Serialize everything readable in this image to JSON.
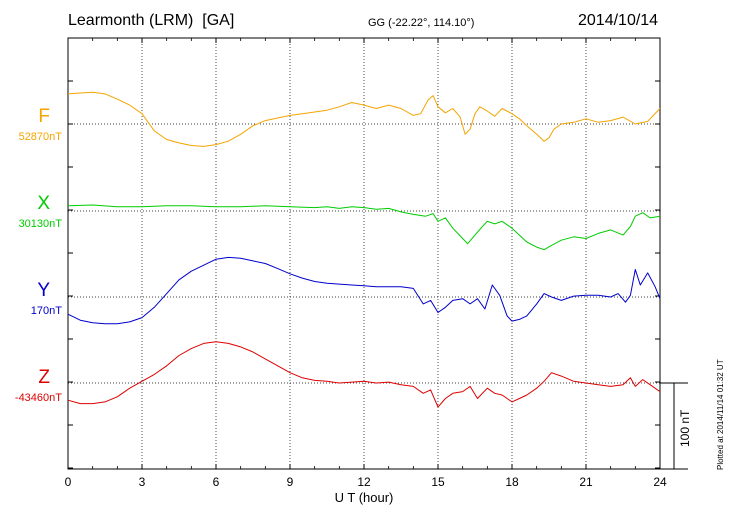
{
  "header": {
    "station": "Learmonth (LRM)  [GA]",
    "coords": "GG (-22.22°, 114.10°)",
    "date": "2014/10/14"
  },
  "footer": {
    "plotted": "Plotted at 2014/11/14 01:32 UT",
    "scale_label": "100 nT"
  },
  "chart_data": {
    "type": "line",
    "xlabel": "U T (hour)",
    "ylabel": "",
    "xlim": [
      0,
      24
    ],
    "x_ticks": [
      0,
      3,
      6,
      9,
      12,
      15,
      18,
      21,
      24
    ],
    "scale_bar_nT": 100,
    "grid": "dotted",
    "series": [
      {
        "name": "F",
        "baseline_label": "52870nT",
        "baseline_nT": 52870,
        "color": "#f5a400",
        "x": [
          0,
          0.5,
          1,
          1.5,
          2,
          2.5,
          3,
          3.5,
          4,
          4.5,
          5,
          5.5,
          6,
          6.5,
          7,
          7.5,
          8,
          8.5,
          9,
          9.5,
          10,
          10.5,
          11,
          11.5,
          12,
          12.5,
          13,
          13.5,
          14,
          14.3,
          14.6,
          14.8,
          15,
          15.3,
          15.6,
          15.9,
          16.1,
          16.3,
          16.5,
          16.7,
          17,
          17.3,
          17.6,
          18,
          18.3,
          18.6,
          19,
          19.3,
          19.5,
          19.7,
          20,
          20.5,
          21,
          21.5,
          22,
          22.5,
          23,
          23.5,
          24
        ],
        "y": [
          35,
          36,
          37,
          35,
          29,
          22,
          12,
          -8,
          -18,
          -22,
          -25,
          -26,
          -24,
          -20,
          -12,
          -2,
          4,
          7,
          10,
          12,
          14,
          16,
          20,
          25,
          22,
          18,
          22,
          18,
          10,
          12,
          28,
          33,
          20,
          13,
          18,
          8,
          -12,
          -6,
          12,
          20,
          15,
          9,
          18,
          12,
          6,
          -2,
          -12,
          -20,
          -16,
          -6,
          0,
          2,
          6,
          2,
          4,
          8,
          0,
          3,
          18
        ]
      },
      {
        "name": "X",
        "baseline_label": "30130nT",
        "baseline_nT": 30130,
        "color": "#00cc00",
        "x": [
          0,
          1,
          2,
          3,
          4,
          5,
          6,
          7,
          8,
          9,
          10,
          10.5,
          11,
          11.5,
          12,
          12.5,
          13,
          13.5,
          14,
          14.5,
          14.8,
          15,
          15.3,
          15.6,
          16,
          16.2,
          16.5,
          16.8,
          17,
          17.3,
          17.6,
          18,
          18.3,
          18.6,
          19,
          19.3,
          19.6,
          20,
          20.5,
          21,
          21.5,
          22,
          22.5,
          22.8,
          23,
          23.3,
          23.6,
          24
        ],
        "y": [
          6,
          7,
          5,
          5,
          6,
          6,
          5,
          5,
          6,
          5,
          4,
          5,
          3,
          5,
          4,
          2,
          3,
          -1,
          -4,
          -6,
          -3,
          -12,
          -8,
          -20,
          -32,
          -38,
          -28,
          -18,
          -12,
          -15,
          -12,
          -20,
          -28,
          -36,
          -42,
          -45,
          -40,
          -34,
          -30,
          -32,
          -26,
          -22,
          -28,
          -18,
          -6,
          -2,
          -8,
          -6
        ]
      },
      {
        "name": "Y",
        "baseline_label": "170nT",
        "baseline_nT": 170,
        "color": "#0000cc",
        "x": [
          0,
          0.5,
          1,
          1.5,
          2,
          2.5,
          3,
          3.5,
          4,
          4.5,
          5,
          5.5,
          6,
          6.5,
          7,
          7.5,
          8,
          8.5,
          9,
          9.5,
          10,
          10.5,
          11,
          11.5,
          12,
          12.5,
          13,
          13.5,
          14,
          14.4,
          14.7,
          15,
          15.3,
          15.6,
          16,
          16.3,
          16.6,
          16.9,
          17.2,
          17.5,
          17.8,
          18,
          18.3,
          18.6,
          19,
          19.3,
          19.6,
          20,
          20.5,
          21,
          21.5,
          22,
          22.3,
          22.6,
          22.8,
          23,
          23.2,
          23.5,
          23.8,
          24
        ],
        "y": [
          -20,
          -27,
          -30,
          -31,
          -31,
          -29,
          -24,
          -12,
          4,
          20,
          30,
          37,
          44,
          46,
          45,
          42,
          39,
          33,
          27,
          22,
          18,
          16,
          15,
          14,
          13,
          12,
          12,
          12,
          10,
          -8,
          -4,
          -18,
          -12,
          -4,
          -2,
          -8,
          -2,
          -14,
          14,
          2,
          -22,
          -28,
          -26,
          -22,
          -8,
          4,
          0,
          -4,
          1,
          2,
          2,
          0,
          4,
          -6,
          2,
          32,
          14,
          28,
          12,
          -2
        ]
      },
      {
        "name": "Z",
        "baseline_label": "-43460nT",
        "baseline_nT": -43460,
        "color": "#dd0000",
        "x": [
          0,
          0.5,
          1,
          1.5,
          2,
          2.5,
          3,
          3.5,
          4,
          4.5,
          5,
          5.5,
          6,
          6.5,
          7,
          7.5,
          8,
          8.5,
          9,
          9.5,
          10,
          10.5,
          11,
          11.5,
          12,
          12.5,
          13,
          13.5,
          14,
          14.4,
          14.7,
          15,
          15.3,
          15.6,
          16,
          16.3,
          16.6,
          17,
          17.3,
          17.6,
          18,
          18.3,
          18.6,
          19,
          19.3,
          19.6,
          20,
          20.5,
          21,
          21.5,
          22,
          22.5,
          22.8,
          23,
          23.3,
          23.6,
          24
        ],
        "y": [
          -20,
          -24,
          -24,
          -22,
          -16,
          -6,
          2,
          10,
          20,
          32,
          40,
          46,
          48,
          46,
          42,
          36,
          28,
          20,
          12,
          6,
          3,
          2,
          0,
          1,
          2,
          0,
          1,
          -2,
          -4,
          -12,
          -8,
          -28,
          -18,
          -12,
          -10,
          -4,
          -18,
          -6,
          -12,
          -14,
          -22,
          -18,
          -14,
          -6,
          2,
          12,
          8,
          2,
          0,
          -2,
          -4,
          -2,
          6,
          -4,
          4,
          -2,
          -10
        ]
      }
    ]
  }
}
